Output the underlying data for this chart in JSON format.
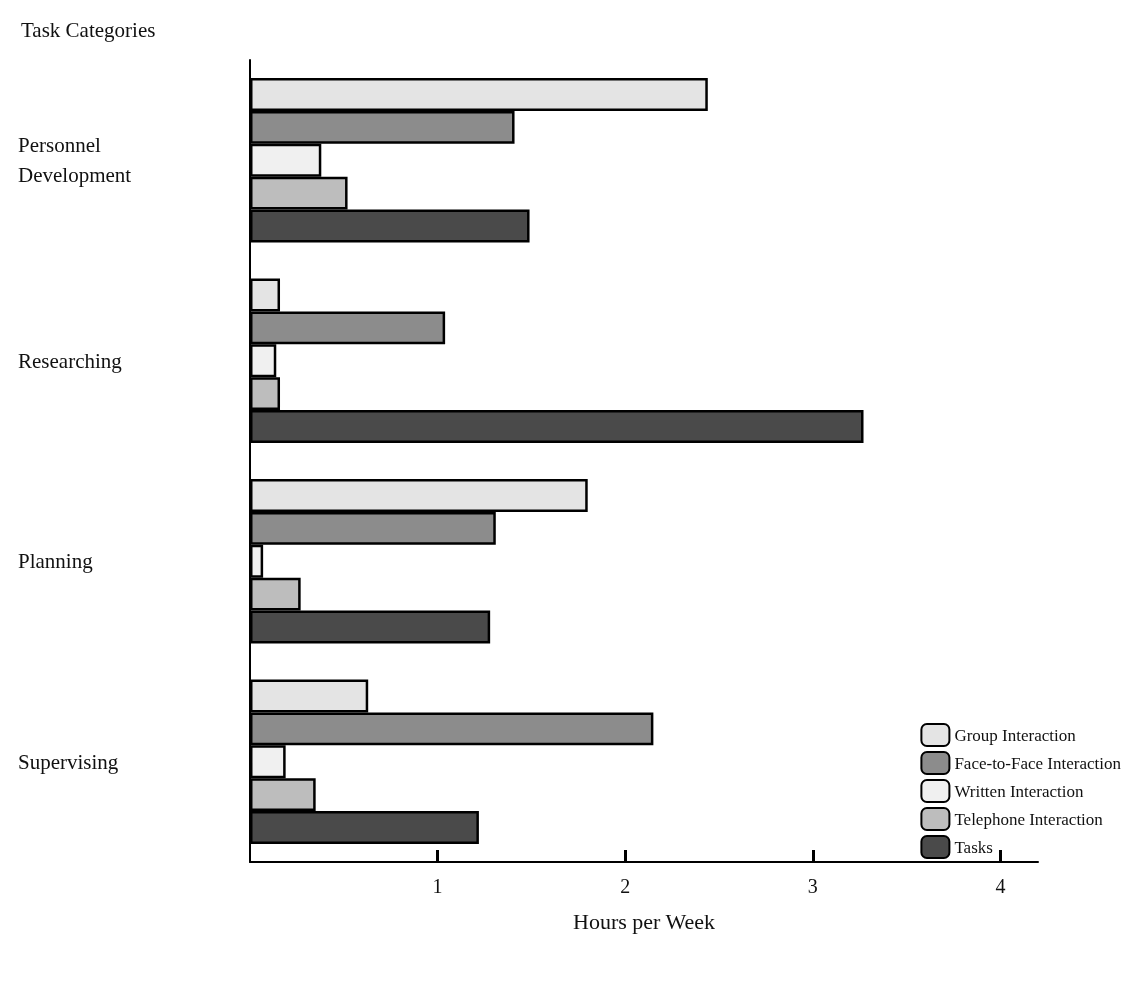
{
  "chart_data": {
    "type": "bar",
    "orientation": "horizontal",
    "ylabel": "Task Categories",
    "xlabel": "Hours per Week",
    "categories": [
      "Personnel\nDevelopment",
      "Researching",
      "Planning",
      "Supervising"
    ],
    "series": [
      {
        "name": "Group Interaction",
        "color": "#e4e4e4",
        "values": [
          2.44,
          0.16,
          1.8,
          0.63
        ]
      },
      {
        "name": "Face-to-Face Interaction",
        "color": "#8c8c8c",
        "values": [
          1.41,
          1.04,
          1.31,
          2.15
        ]
      },
      {
        "name": "Written Interaction",
        "color": "#f0f0f0",
        "values": [
          0.38,
          0.14,
          0.07,
          0.19
        ]
      },
      {
        "name": "Telephone Interaction",
        "color": "#bdbdbd",
        "values": [
          0.52,
          0.16,
          0.27,
          0.35
        ]
      },
      {
        "name": "Tasks",
        "color": "#4a4a4a",
        "values": [
          1.49,
          3.27,
          1.28,
          1.22
        ]
      }
    ],
    "xlim": [
      0,
      4.2
    ],
    "xticks": [
      1,
      2,
      3,
      4
    ],
    "grid": false,
    "legend": "bottom right"
  }
}
